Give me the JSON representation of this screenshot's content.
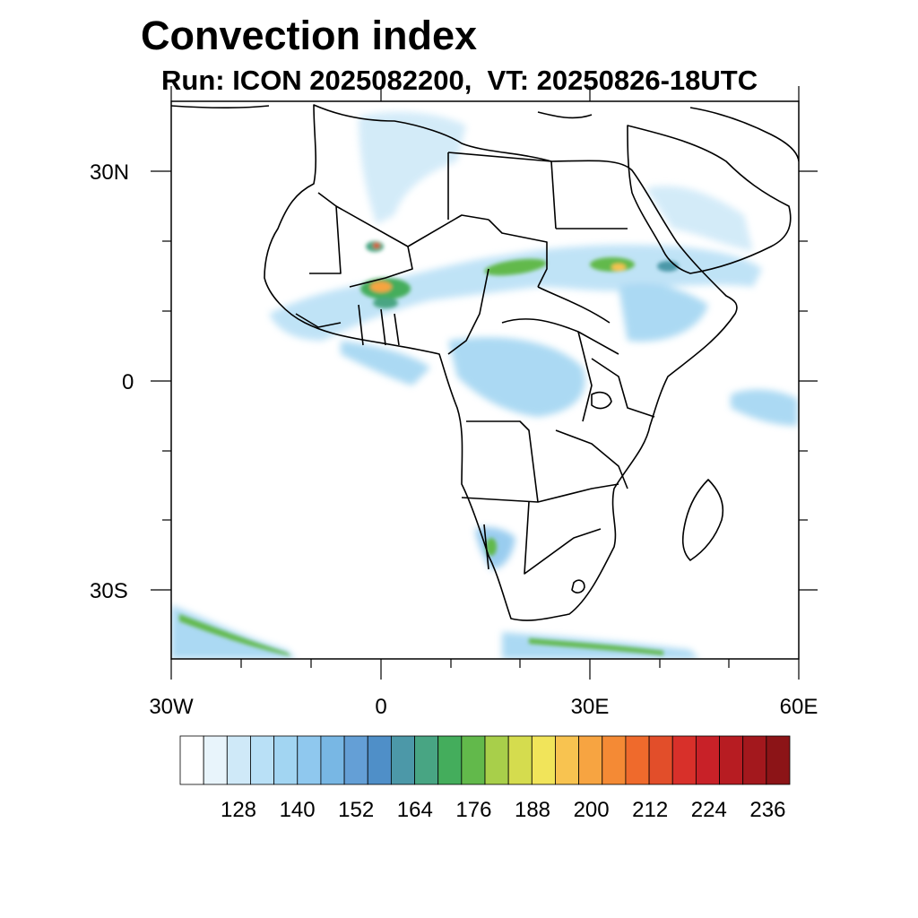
{
  "title": "Convection index",
  "subtitle": "Run: ICON 2025082200,  VT: 20250826-18UTC",
  "lat_labels": [
    "30N",
    "0",
    "30S"
  ],
  "lon_labels": [
    "30W",
    "0",
    "30E",
    "60E"
  ],
  "colorbar": {
    "colors": [
      "#ffffff",
      "#e8f4fb",
      "#cfe9f8",
      "#b9e0f6",
      "#a2d5f2",
      "#8fc8ee",
      "#78b7e4",
      "#649fd6",
      "#4f8fc8",
      "#4c98a8",
      "#48a583",
      "#44ad5c",
      "#62b94b",
      "#a8cf4a",
      "#d5dc4e",
      "#f1e45a",
      "#f8c350",
      "#f7a441",
      "#f48a35",
      "#ef6a2c",
      "#e24e2a",
      "#d8302a",
      "#c82128",
      "#b71c22",
      "#a3181d",
      "#8c1417"
    ],
    "tick_labels": [
      "128",
      "140",
      "152",
      "164",
      "176",
      "188",
      "200",
      "212",
      "224",
      "236"
    ]
  },
  "map": {
    "region": "Africa",
    "lon_range": [
      -30,
      60
    ],
    "lat_range": [
      -40,
      40
    ],
    "variable": "Convection index"
  }
}
